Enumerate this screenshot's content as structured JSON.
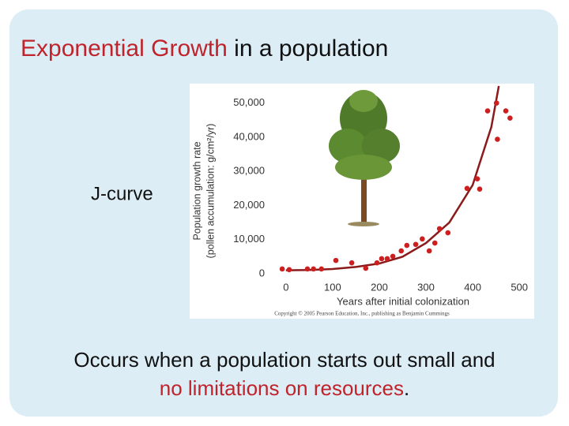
{
  "slide": {
    "title": {
      "highlight": "Exponential Growth",
      "rest": " in a population"
    },
    "label": "J-curve",
    "body": {
      "line1": "Occurs when a population starts out small and",
      "highlight": "no limitations on resources",
      "end": "."
    },
    "copyright": "Copyright © 2005 Pearson Education, Inc., publishing as Benjamin Cummings"
  },
  "chart_data": {
    "type": "scatter",
    "ylabel": "Population growth rate",
    "ylabel2": "(pollen accumulation: g/cm²/yr)",
    "xlabel": "Years after initial colonization",
    "xlim": [
      -20,
      520
    ],
    "ylim": [
      0,
      55000
    ],
    "xticks": [
      0,
      100,
      200,
      300,
      400,
      500
    ],
    "yticks": [
      0,
      {
        "value": 10000,
        "label": "10,000"
      },
      {
        "value": 20000,
        "label": "20,000"
      },
      {
        "value": 30000,
        "label": "30,000"
      },
      {
        "value": 40000,
        "label": "40,000"
      },
      {
        "value": 50000,
        "label": "50,000"
      }
    ],
    "series": [
      {
        "type": "scatter",
        "color": "#cc1f1f",
        "x": [
          -8,
          7,
          46,
          59,
          76,
          107,
          141,
          171,
          195,
          205,
          217,
          229,
          247,
          259,
          278,
          292,
          307,
          319,
          329,
          347,
          388,
          410,
          415,
          432,
          451,
          453,
          471,
          480
        ],
        "values": [
          1400,
          1200,
          1400,
          1400,
          1400,
          3900,
          3200,
          1600,
          3200,
          4400,
          4400,
          5100,
          6700,
          8300,
          8600,
          10200,
          6700,
          9000,
          13200,
          12000,
          25000,
          27800,
          24800,
          47700,
          50000,
          39400,
          47700,
          45600
        ]
      },
      {
        "type": "line",
        "color": "#8b1a1a",
        "x": [
          0,
          50,
          100,
          150,
          200,
          250,
          300,
          350,
          400,
          440,
          456
        ],
        "values": [
          1000,
          1100,
          1400,
          2000,
          3000,
          5000,
          9000,
          15000,
          26000,
          43000,
          55000
        ]
      }
    ]
  }
}
